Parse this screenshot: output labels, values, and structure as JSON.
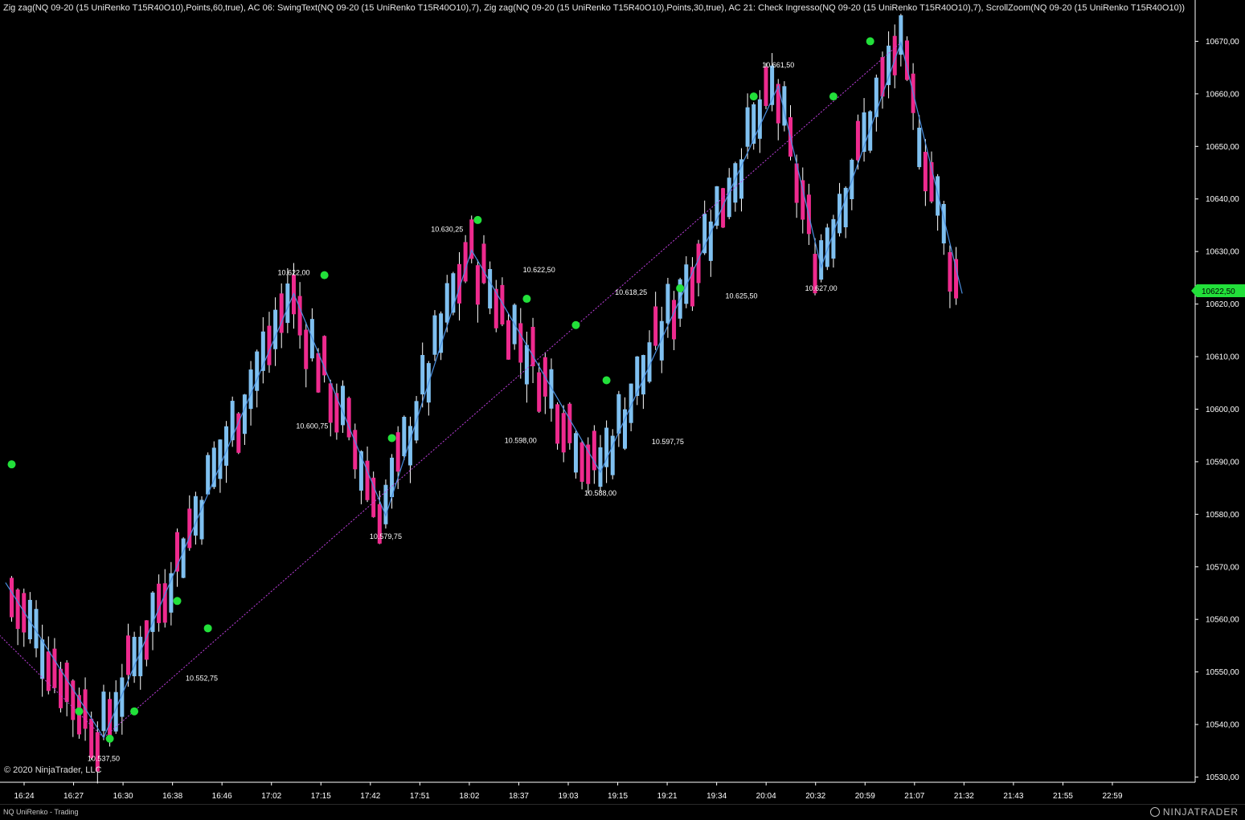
{
  "header": {
    "indicators": "Zig zag(NQ 09-20 (15 UniRenko T15R40O10),Points,60,true), AC 06: SwingText(NQ 09-20 (15 UniRenko T15R40O10),7), Zig zag(NQ 09-20 (15 UniRenko T15R40O10),Points,30,true), AC 21: Check Ingresso(NQ 09-20 (15 UniRenko T15R40O10),7), ScrollZoom(NQ 09-20 (15 UniRenko T15R40O10))"
  },
  "copyright": "© 2020 NinjaTrader, LLC",
  "status_bar": {
    "tab_label": "NQ UniRenko - Trading",
    "brand": "NINJATRADER"
  },
  "colors": {
    "up": "#7fc0f0",
    "down": "#ee2a8e",
    "zigzag": "#4a8fe0",
    "trendline": "#c040e0",
    "signal": "#22e03a",
    "price_tag": "#22e03a",
    "axis": "#ffffff"
  },
  "chart_data": {
    "type": "candlestick",
    "instrument": "NQ 09-20 (15 UniRenko T15R40O10)",
    "yaxis": {
      "ticks": [
        "10670,00",
        "10660,00",
        "10650,00",
        "10640,00",
        "10630,00",
        "10620,00",
        "10610,00",
        "10600,00",
        "10590,00",
        "10580,00",
        "10570,00",
        "10560,00",
        "10550,00",
        "10540,00",
        "10530,00"
      ],
      "range": [
        10529,
        10672.5
      ]
    },
    "xaxis": {
      "ticks": [
        "16:24",
        "16:27",
        "16:30",
        "16:38",
        "16:46",
        "17:02",
        "17:15",
        "17:42",
        "17:51",
        "18:02",
        "18:37",
        "19:03",
        "19:15",
        "19:21",
        "19:34",
        "20:04",
        "20:32",
        "20:59",
        "21:07",
        "21:32",
        "21:43",
        "21:55",
        "22:59"
      ]
    },
    "current_price": "10622,50",
    "zigzag_points": [
      {
        "bar": -1,
        "price": 10567
      },
      {
        "bar": 15,
        "price": 10537.5
      },
      {
        "bar": 46,
        "price": 10622.0
      },
      {
        "bar": 61,
        "price": 10579.75
      },
      {
        "bar": 75,
        "price": 10630.25
      },
      {
        "bar": 96,
        "price": 10588.0
      },
      {
        "bar": 125,
        "price": 10661.5
      },
      {
        "bar": 132,
        "price": 10627.0
      },
      {
        "bar": 145,
        "price": 10669.75
      },
      {
        "bar": 155,
        "price": 10622.0
      }
    ],
    "trendlines": [
      {
        "from": {
          "bar": -2,
          "price": 10557
        },
        "to": {
          "bar": 15,
          "price": 10537.5
        }
      },
      {
        "from": {
          "bar": 15,
          "price": 10537.5
        },
        "to": {
          "bar": 145,
          "price": 10669.75
        }
      }
    ],
    "swing_labels": [
      {
        "text": "10.537,50",
        "bar": 15,
        "price": 10537.5,
        "pos": "below"
      },
      {
        "text": "10.552,75",
        "bar": 31,
        "price": 10552.75,
        "pos": "below"
      },
      {
        "text": "10.622,00",
        "bar": 46,
        "price": 10622.0,
        "pos": "above"
      },
      {
        "text": "10.600,75",
        "bar": 49,
        "price": 10600.75,
        "pos": "below"
      },
      {
        "text": "10.579,75",
        "bar": 61,
        "price": 10579.75,
        "pos": "below"
      },
      {
        "text": "10.630,25",
        "bar": 71,
        "price": 10630.25,
        "pos": "above"
      },
      {
        "text": "10.598,00",
        "bar": 83,
        "price": 10598.0,
        "pos": "below"
      },
      {
        "text": "10.622,50",
        "bar": 86,
        "price": 10622.5,
        "pos": "above"
      },
      {
        "text": "10.588,00",
        "bar": 96,
        "price": 10588.0,
        "pos": "below"
      },
      {
        "text": "10.618,25",
        "bar": 101,
        "price": 10618.25,
        "pos": "above"
      },
      {
        "text": "10.597,75",
        "bar": 107,
        "price": 10597.75,
        "pos": "below"
      },
      {
        "text": "10.625,50",
        "bar": 119,
        "price": 10625.5,
        "pos": "below"
      },
      {
        "text": "10.661,50",
        "bar": 125,
        "price": 10661.5,
        "pos": "above"
      },
      {
        "text": "10.627,00",
        "bar": 132,
        "price": 10627.0,
        "pos": "below"
      }
    ],
    "signals": [
      {
        "bar": 0,
        "price": 10589.5
      },
      {
        "bar": 11,
        "price": 10542.5
      },
      {
        "bar": 16,
        "price": 10537.3
      },
      {
        "bar": 20,
        "price": 10542.5
      },
      {
        "bar": 27,
        "price": 10563.5
      },
      {
        "bar": 32,
        "price": 10558.3
      },
      {
        "bar": 51,
        "price": 10625.5
      },
      {
        "bar": 62,
        "price": 10594.5
      },
      {
        "bar": 76,
        "price": 10636.0
      },
      {
        "bar": 84,
        "price": 10621.0
      },
      {
        "bar": 92,
        "price": 10616.0
      },
      {
        "bar": 97,
        "price": 10605.5
      },
      {
        "bar": 109,
        "price": 10623.0
      },
      {
        "bar": 121,
        "price": 10659.5
      },
      {
        "bar": 134,
        "price": 10659.5
      },
      {
        "bar": 140,
        "price": 10670.0
      }
    ]
  }
}
